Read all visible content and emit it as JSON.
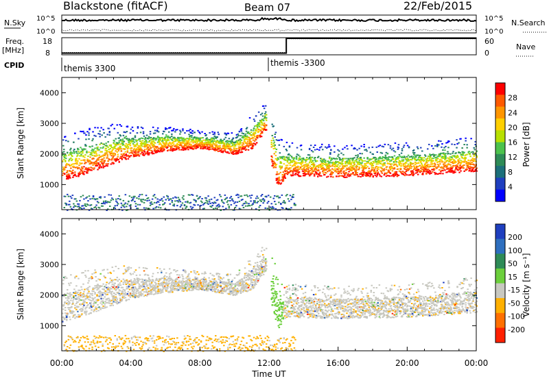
{
  "header": {
    "station": "Blackstone (fitACF)",
    "beam": "Beam 07",
    "date": "22/Feb/2015"
  },
  "top_panels": {
    "nsky_label": "N.Sky",
    "nsearch_label": "N.Search",
    "nsky_ticks": [
      "10^5",
      "10^0"
    ],
    "freq_label": "Freq.",
    "freq_unit": "[MHz]",
    "freq_ticks": [
      "18",
      "8"
    ],
    "nave_label": "Nave",
    "nave_ticks": [
      "60",
      "0"
    ],
    "cpid_label": "CPID",
    "cpid_segments": [
      {
        "label": "themis 3300",
        "start": 0,
        "end": 12
      },
      {
        "label": "themis -3300",
        "start": 12,
        "end": 24
      }
    ],
    "freq_series": {
      "hours": [
        0,
        13,
        13,
        24
      ],
      "values": [
        9,
        9,
        18,
        18
      ]
    },
    "nave_series": {
      "hours": [
        0,
        13,
        13,
        24
      ],
      "values": [
        8,
        8,
        56,
        56
      ]
    }
  },
  "chart_data": [
    {
      "type": "heatmap",
      "name": "Power",
      "ylabel": "Slant Range [km]",
      "colorbar_label": "Power [dB]",
      "x_range": [
        0,
        24
      ],
      "y_range": [
        180,
        4500
      ],
      "y_ticks": [
        1000,
        2000,
        3000,
        4000
      ],
      "colorbar_ticks": [
        "28",
        "24",
        "20",
        "16",
        "12",
        "8",
        "4"
      ],
      "colorbar_colors": [
        "#ff0000",
        "#ff5a00",
        "#ff9600",
        "#ffd000",
        "#b8e000",
        "#4cc24c",
        "#2e8b57",
        "#1c6f7a",
        "#1f3fbf",
        "#0000ff"
      ],
      "scatter_bands": [
        {
          "hours": [
            0,
            1,
            2,
            3,
            4,
            6,
            8,
            10,
            11,
            11.8
          ],
          "lower": [
            1150,
            1300,
            1500,
            1700,
            1900,
            2100,
            2200,
            2000,
            2200,
            2800
          ],
          "upper": [
            2600,
            2800,
            2900,
            3000,
            2950,
            2900,
            2800,
            2700,
            3300,
            3700
          ]
        },
        {
          "hours": [
            12.1,
            12.5,
            13,
            16,
            20,
            24
          ],
          "lower": [
            1700,
            900,
            1300,
            1250,
            1300,
            1450
          ],
          "upper": [
            3500,
            2600,
            2400,
            2300,
            2400,
            2600
          ]
        }
      ],
      "ground_band": [
        180,
        700
      ]
    },
    {
      "type": "heatmap",
      "name": "Velocity",
      "ylabel": "Slant Range [km]",
      "colorbar_label": "Velocity [m s⁻¹]",
      "x_range": [
        0,
        24
      ],
      "y_range": [
        180,
        4500
      ],
      "y_ticks": [
        1000,
        2000,
        3000,
        4000
      ],
      "colorbar_ticks": [
        "200",
        "100",
        "50",
        "15",
        "-15",
        "-50",
        "-100",
        "-200"
      ],
      "colorbar_colors": [
        "#1f3fbf",
        "#2e6fbf",
        "#2e8b57",
        "#6ccf3c",
        "#c8c8c0",
        "#ffb000",
        "#ff7000",
        "#ff2000"
      ],
      "scatter_bands": [
        {
          "hours": [
            0,
            1,
            2,
            3,
            4,
            6,
            8,
            10,
            11,
            11.8
          ],
          "lower": [
            1150,
            1300,
            1500,
            1700,
            1900,
            2100,
            2200,
            2000,
            2200,
            2800
          ],
          "upper": [
            2600,
            2800,
            2900,
            3000,
            2950,
            2900,
            2800,
            2700,
            3300,
            3700
          ]
        },
        {
          "hours": [
            12.1,
            12.5,
            13,
            16,
            20,
            24
          ],
          "lower": [
            1700,
            900,
            1300,
            1250,
            1300,
            1450
          ],
          "upper": [
            3500,
            2600,
            2400,
            2300,
            2400,
            2600
          ]
        }
      ],
      "ground_band": [
        180,
        700
      ]
    }
  ],
  "x_axis": {
    "label": "Time UT",
    "ticks": [
      "00:00",
      "04:00",
      "08:00",
      "12:00",
      "16:00",
      "20:00",
      "00:00"
    ]
  }
}
